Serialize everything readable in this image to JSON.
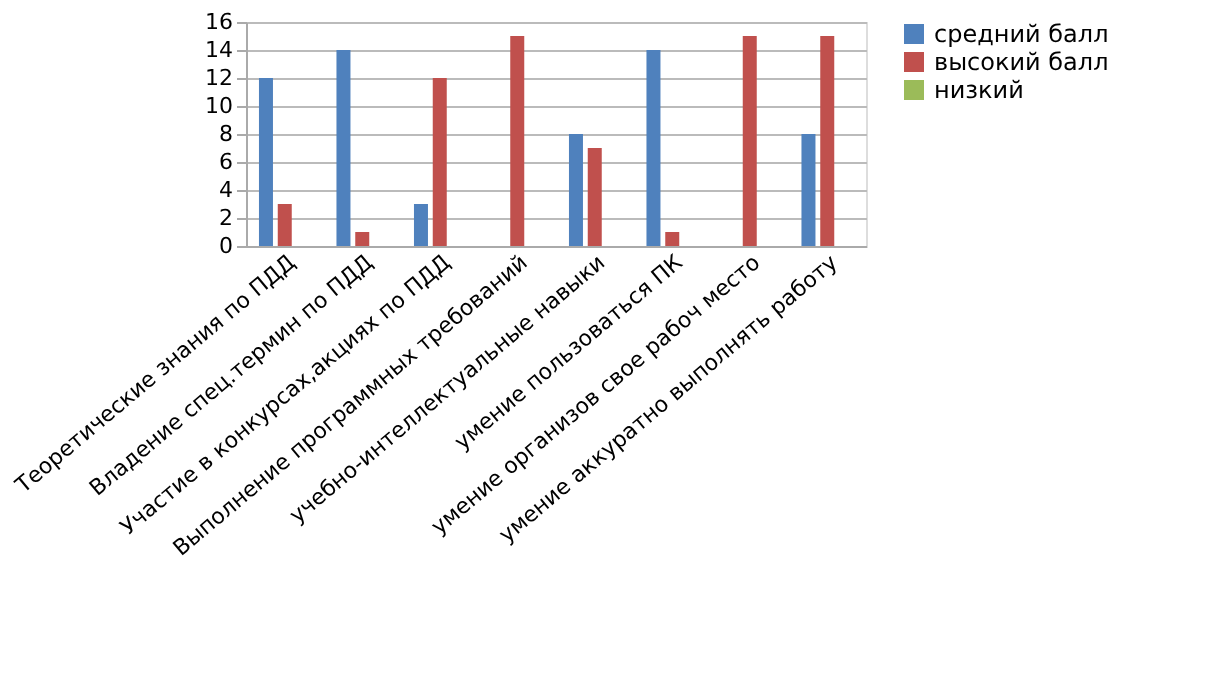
{
  "chart_data": {
    "type": "bar",
    "categories": [
      "Теоретические знания по ПДД",
      "Владение спец.термин по ПДД",
      "Участие в конкурсах,акциях по ПДД",
      "Выполнение программных требований",
      "учебно-интеллектуальные навыки",
      "умение пользоваться ПК",
      "умение организов свое рабоч место",
      "умение аккуратно выполнять работу"
    ],
    "series": [
      {
        "name": "средний балл",
        "color": "#4f81bd",
        "values": [
          12,
          14,
          3,
          null,
          8,
          14,
          null,
          8
        ]
      },
      {
        "name": "высокий балл",
        "color": "#c0504d",
        "values": [
          3,
          1,
          12,
          15,
          7,
          1,
          15,
          15
        ]
      },
      {
        "name": "низкий",
        "color": "#9bbb59",
        "values": [
          null,
          null,
          null,
          null,
          null,
          null,
          null,
          null
        ]
      }
    ],
    "ylim": [
      0,
      16
    ],
    "yticks": [
      0,
      2,
      4,
      6,
      8,
      10,
      12,
      14,
      16
    ],
    "grid": "y",
    "legend": "right"
  }
}
